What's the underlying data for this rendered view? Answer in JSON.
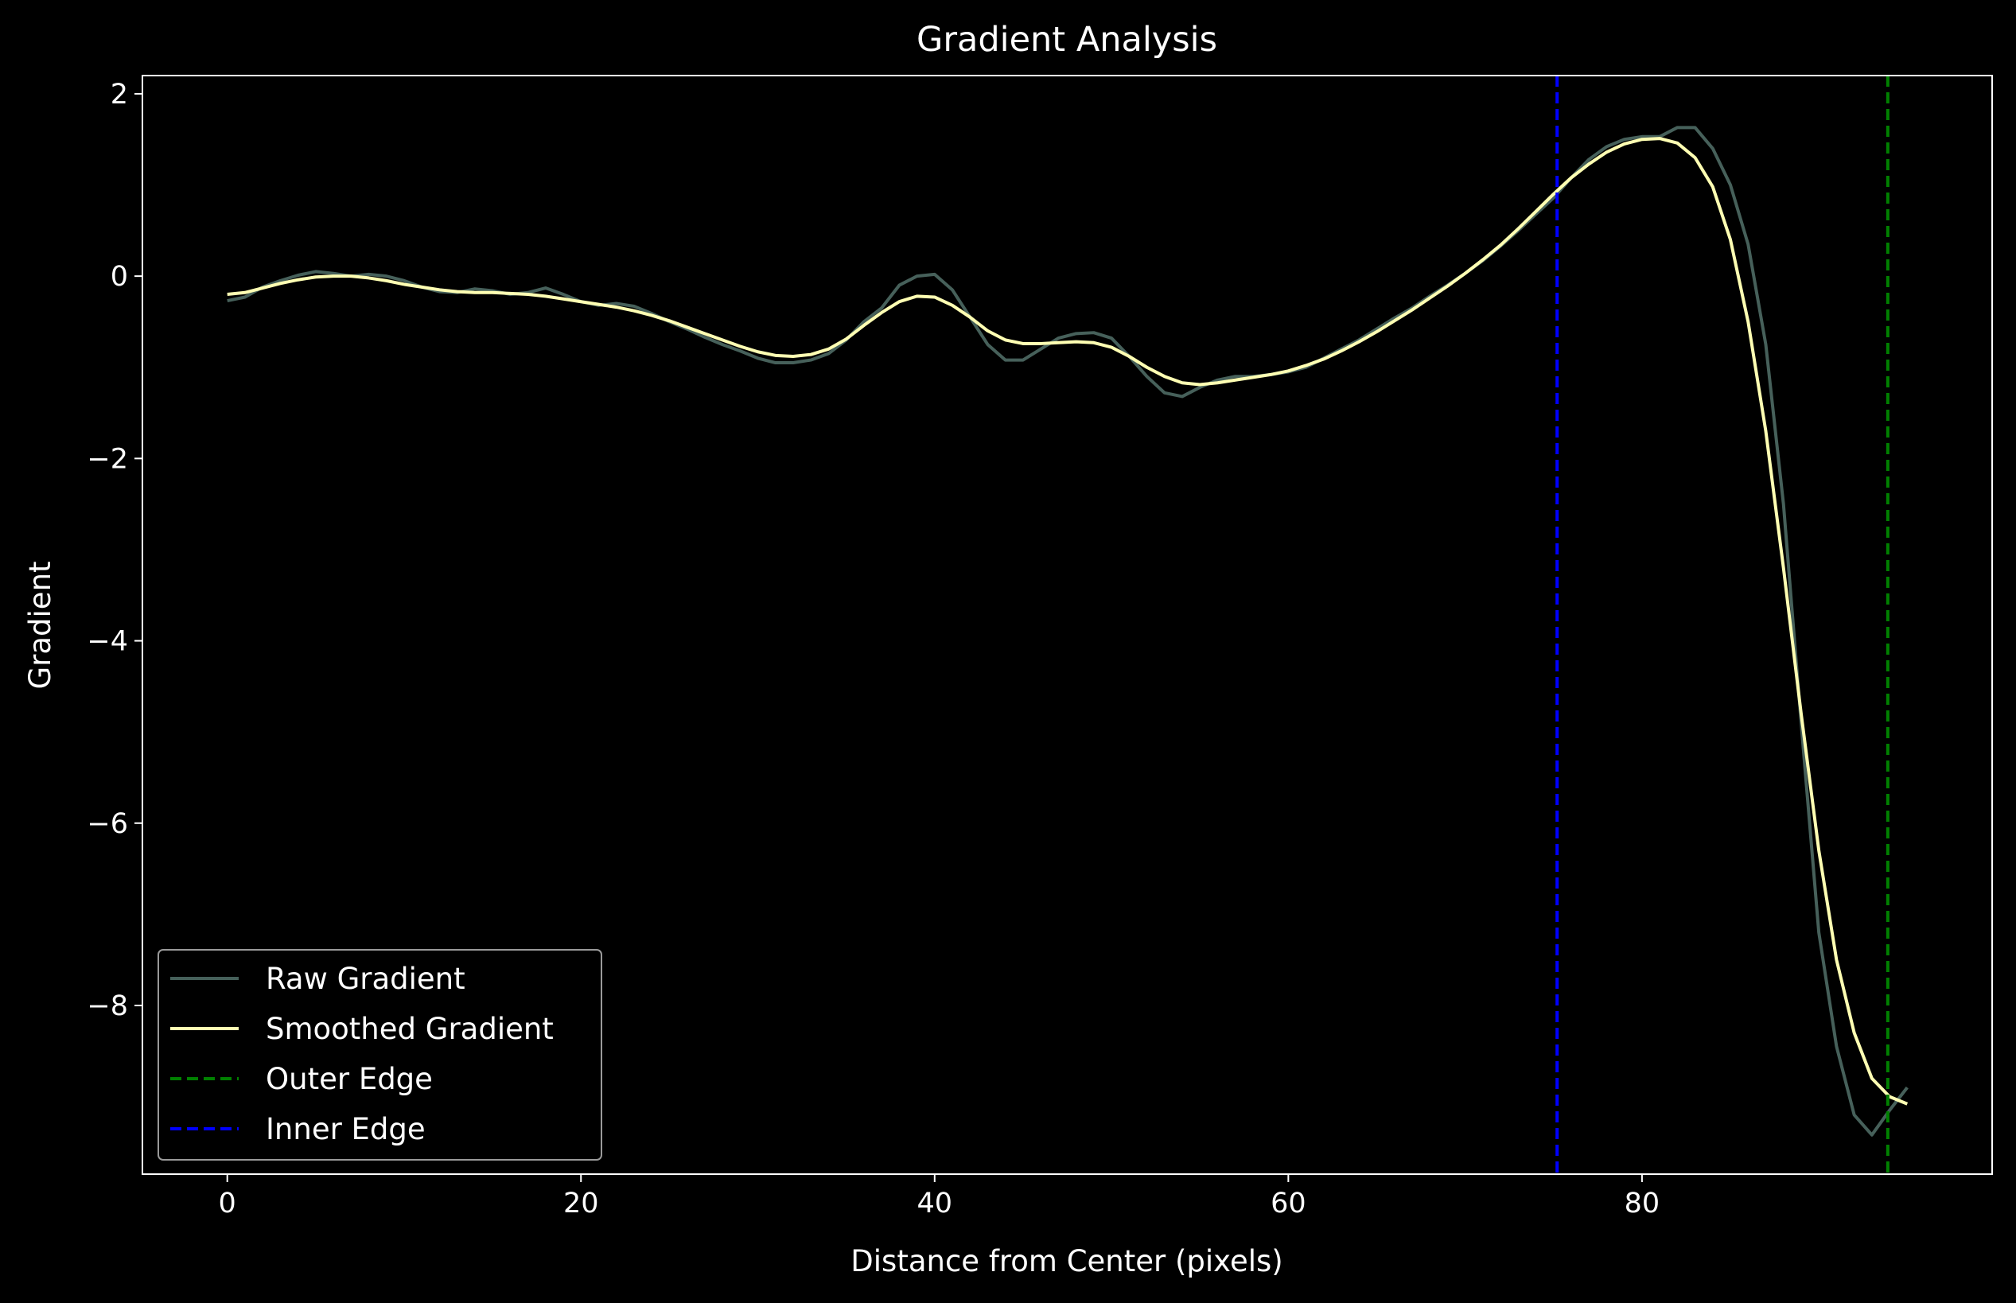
{
  "chart_data": {
    "type": "line",
    "title": "Gradient Analysis",
    "xlabel": "Distance from Center (pixels)",
    "ylabel": "Gradient",
    "xlim": [
      -4.8,
      99.8
    ],
    "ylim": [
      -9.85,
      2.2
    ],
    "x_ticks": [
      {
        "value": 0,
        "label": "0"
      },
      {
        "value": 20,
        "label": "20"
      },
      {
        "value": 40,
        "label": "40"
      },
      {
        "value": 60,
        "label": "60"
      },
      {
        "value": 80,
        "label": "80"
      }
    ],
    "y_ticks": [
      {
        "value": 2,
        "label": "2"
      },
      {
        "value": 0,
        "label": "0"
      },
      {
        "value": -2,
        "label": "−2"
      },
      {
        "value": -4,
        "label": "−4"
      },
      {
        "value": -6,
        "label": "−6"
      },
      {
        "value": -8,
        "label": "−8"
      }
    ],
    "grid": false,
    "legend_position": "lower-left",
    "series": [
      {
        "name": "Raw Gradient",
        "color": "#46605a",
        "style": "solid",
        "points": [
          [
            0,
            -0.27
          ],
          [
            1,
            -0.23
          ],
          [
            2,
            -0.12
          ],
          [
            3,
            -0.05
          ],
          [
            4,
            0.01
          ],
          [
            5,
            0.05
          ],
          [
            6,
            0.03
          ],
          [
            7,
            0.0
          ],
          [
            8,
            0.02
          ],
          [
            9,
            0.0
          ],
          [
            10,
            -0.05
          ],
          [
            11,
            -0.12
          ],
          [
            12,
            -0.17
          ],
          [
            13,
            -0.18
          ],
          [
            14,
            -0.14
          ],
          [
            15,
            -0.16
          ],
          [
            16,
            -0.2
          ],
          [
            17,
            -0.18
          ],
          [
            18,
            -0.13
          ],
          [
            19,
            -0.2
          ],
          [
            20,
            -0.28
          ],
          [
            21,
            -0.32
          ],
          [
            22,
            -0.3
          ],
          [
            23,
            -0.33
          ],
          [
            24,
            -0.41
          ],
          [
            25,
            -0.5
          ],
          [
            26,
            -0.58
          ],
          [
            27,
            -0.67
          ],
          [
            28,
            -0.75
          ],
          [
            29,
            -0.82
          ],
          [
            30,
            -0.9
          ],
          [
            31,
            -0.95
          ],
          [
            32,
            -0.95
          ],
          [
            33,
            -0.92
          ],
          [
            34,
            -0.85
          ],
          [
            35,
            -0.7
          ],
          [
            36,
            -0.5
          ],
          [
            37,
            -0.35
          ],
          [
            38,
            -0.1
          ],
          [
            39,
            0.0
          ],
          [
            40,
            0.02
          ],
          [
            41,
            -0.15
          ],
          [
            42,
            -0.45
          ],
          [
            43,
            -0.75
          ],
          [
            44,
            -0.92
          ],
          [
            45,
            -0.92
          ],
          [
            46,
            -0.8
          ],
          [
            47,
            -0.68
          ],
          [
            48,
            -0.63
          ],
          [
            49,
            -0.62
          ],
          [
            50,
            -0.68
          ],
          [
            51,
            -0.88
          ],
          [
            52,
            -1.1
          ],
          [
            53,
            -1.28
          ],
          [
            54,
            -1.32
          ],
          [
            55,
            -1.22
          ],
          [
            56,
            -1.14
          ],
          [
            57,
            -1.1
          ],
          [
            58,
            -1.1
          ],
          [
            59,
            -1.08
          ],
          [
            60,
            -1.05
          ],
          [
            61,
            -1.0
          ],
          [
            62,
            -0.9
          ],
          [
            63,
            -0.8
          ],
          [
            64,
            -0.7
          ],
          [
            65,
            -0.58
          ],
          [
            66,
            -0.46
          ],
          [
            67,
            -0.35
          ],
          [
            68,
            -0.22
          ],
          [
            69,
            -0.1
          ],
          [
            70,
            0.03
          ],
          [
            71,
            0.17
          ],
          [
            72,
            0.33
          ],
          [
            73,
            0.5
          ],
          [
            74,
            0.68
          ],
          [
            75,
            0.86
          ],
          [
            76,
            1.08
          ],
          [
            77,
            1.28
          ],
          [
            78,
            1.42
          ],
          [
            79,
            1.5
          ],
          [
            80,
            1.53
          ],
          [
            81,
            1.53
          ],
          [
            82,
            1.63
          ],
          [
            83,
            1.63
          ],
          [
            84,
            1.4
          ],
          [
            85,
            1.0
          ],
          [
            86,
            0.35
          ],
          [
            87,
            -0.75
          ],
          [
            88,
            -2.5
          ],
          [
            89,
            -4.9
          ],
          [
            90,
            -7.2
          ],
          [
            91,
            -8.45
          ],
          [
            92,
            -9.2
          ],
          [
            93,
            -9.42
          ],
          [
            94,
            -9.15
          ],
          [
            95,
            -8.9
          ]
        ]
      },
      {
        "name": "Smoothed Gradient",
        "color": "#ffffb3",
        "style": "solid",
        "points": [
          [
            0,
            -0.2
          ],
          [
            1,
            -0.18
          ],
          [
            2,
            -0.13
          ],
          [
            3,
            -0.08
          ],
          [
            4,
            -0.04
          ],
          [
            5,
            -0.01
          ],
          [
            6,
            0.0
          ],
          [
            7,
            0.0
          ],
          [
            8,
            -0.02
          ],
          [
            9,
            -0.05
          ],
          [
            10,
            -0.09
          ],
          [
            11,
            -0.12
          ],
          [
            12,
            -0.15
          ],
          [
            13,
            -0.17
          ],
          [
            14,
            -0.18
          ],
          [
            15,
            -0.18
          ],
          [
            16,
            -0.19
          ],
          [
            17,
            -0.2
          ],
          [
            18,
            -0.22
          ],
          [
            19,
            -0.25
          ],
          [
            20,
            -0.28
          ],
          [
            21,
            -0.31
          ],
          [
            22,
            -0.34
          ],
          [
            23,
            -0.38
          ],
          [
            24,
            -0.43
          ],
          [
            25,
            -0.49
          ],
          [
            26,
            -0.56
          ],
          [
            27,
            -0.63
          ],
          [
            28,
            -0.7
          ],
          [
            29,
            -0.77
          ],
          [
            30,
            -0.83
          ],
          [
            31,
            -0.87
          ],
          [
            32,
            -0.88
          ],
          [
            33,
            -0.86
          ],
          [
            34,
            -0.8
          ],
          [
            35,
            -0.69
          ],
          [
            36,
            -0.54
          ],
          [
            37,
            -0.4
          ],
          [
            38,
            -0.28
          ],
          [
            39,
            -0.22
          ],
          [
            40,
            -0.23
          ],
          [
            41,
            -0.32
          ],
          [
            42,
            -0.45
          ],
          [
            43,
            -0.6
          ],
          [
            44,
            -0.7
          ],
          [
            45,
            -0.74
          ],
          [
            46,
            -0.74
          ],
          [
            47,
            -0.73
          ],
          [
            48,
            -0.72
          ],
          [
            49,
            -0.73
          ],
          [
            50,
            -0.78
          ],
          [
            51,
            -0.88
          ],
          [
            52,
            -1.0
          ],
          [
            53,
            -1.1
          ],
          [
            54,
            -1.17
          ],
          [
            55,
            -1.19
          ],
          [
            56,
            -1.17
          ],
          [
            57,
            -1.14
          ],
          [
            58,
            -1.11
          ],
          [
            59,
            -1.08
          ],
          [
            60,
            -1.04
          ],
          [
            61,
            -0.98
          ],
          [
            62,
            -0.91
          ],
          [
            63,
            -0.82
          ],
          [
            64,
            -0.72
          ],
          [
            65,
            -0.61
          ],
          [
            66,
            -0.49
          ],
          [
            67,
            -0.37
          ],
          [
            68,
            -0.24
          ],
          [
            69,
            -0.11
          ],
          [
            70,
            0.03
          ],
          [
            71,
            0.18
          ],
          [
            72,
            0.34
          ],
          [
            73,
            0.52
          ],
          [
            74,
            0.71
          ],
          [
            75,
            0.9
          ],
          [
            76,
            1.08
          ],
          [
            77,
            1.23
          ],
          [
            78,
            1.36
          ],
          [
            79,
            1.45
          ],
          [
            80,
            1.5
          ],
          [
            81,
            1.51
          ],
          [
            82,
            1.46
          ],
          [
            83,
            1.3
          ],
          [
            84,
            0.98
          ],
          [
            85,
            0.4
          ],
          [
            86,
            -0.5
          ],
          [
            87,
            -1.7
          ],
          [
            88,
            -3.2
          ],
          [
            89,
            -4.8
          ],
          [
            90,
            -6.3
          ],
          [
            91,
            -7.5
          ],
          [
            92,
            -8.3
          ],
          [
            93,
            -8.8
          ],
          [
            94,
            -9.0
          ],
          [
            95,
            -9.08
          ]
        ]
      },
      {
        "name": "Outer Edge",
        "color": "#008000",
        "style": "dashed",
        "x": 93.9
      },
      {
        "name": "Inner Edge",
        "color": "#0000ff",
        "style": "dashed",
        "x": 75.2
      }
    ]
  }
}
